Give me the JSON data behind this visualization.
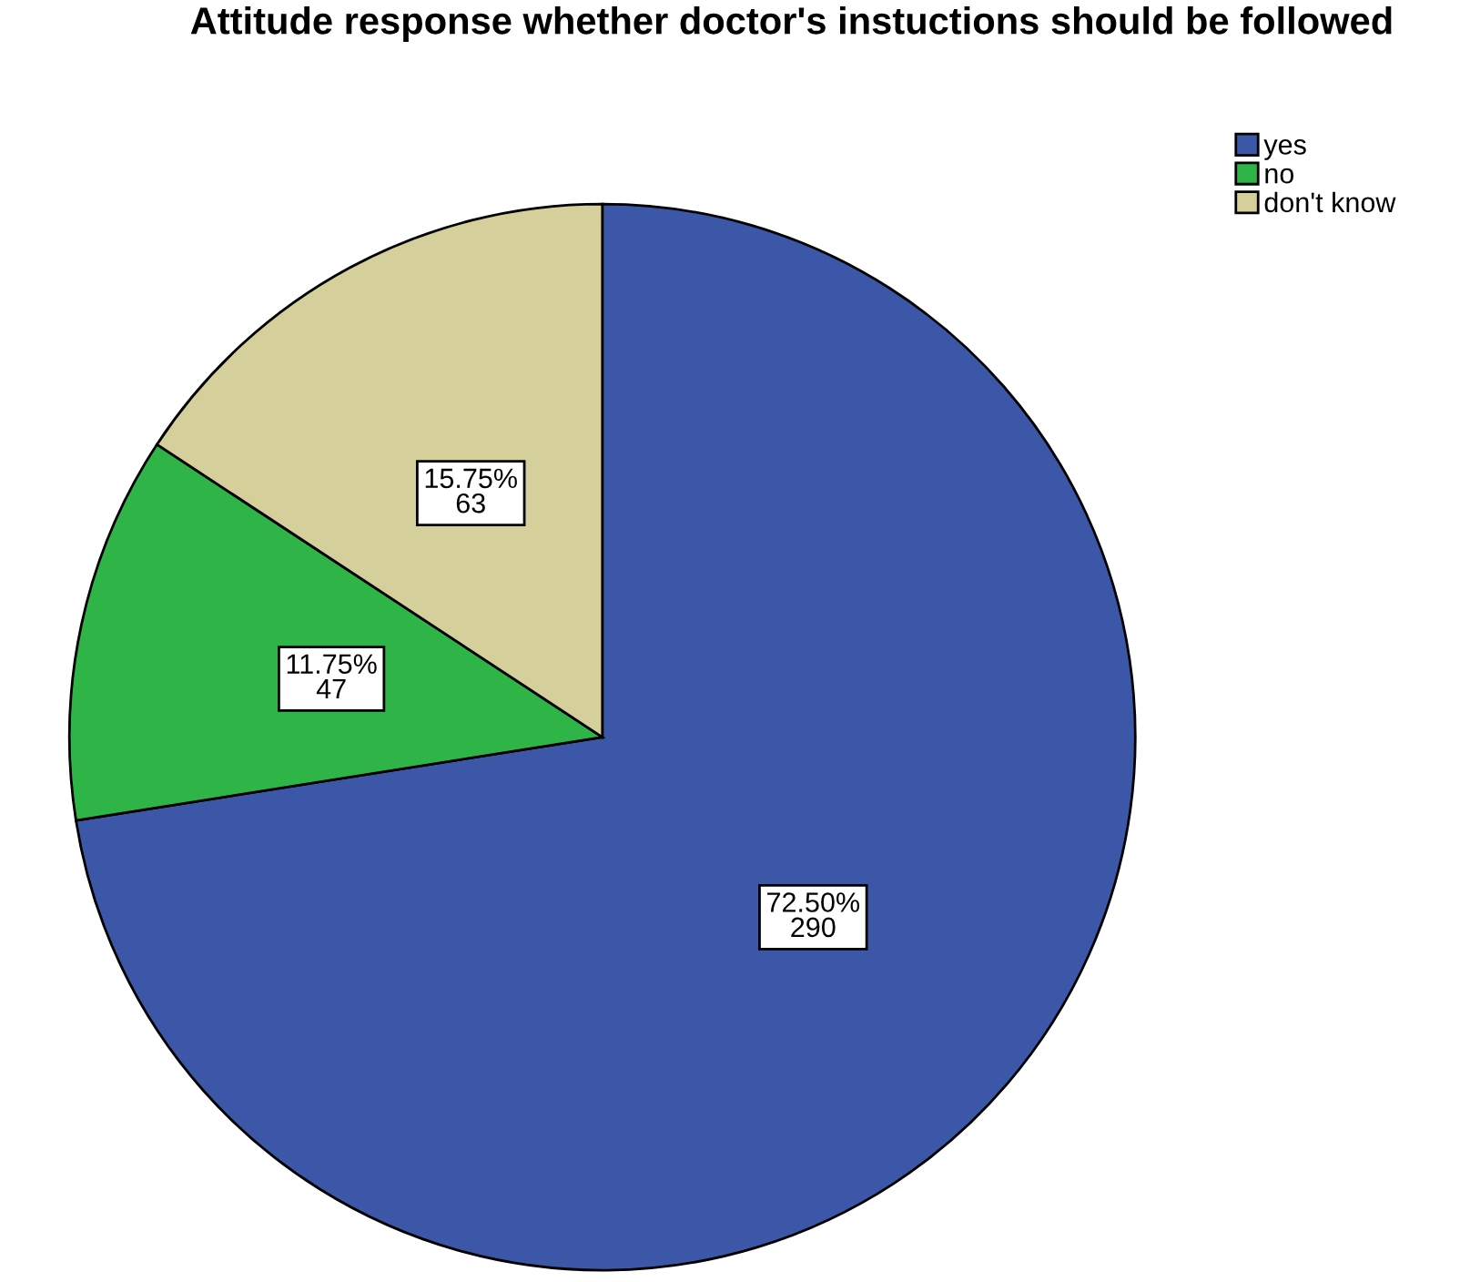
{
  "chart_data": {
    "type": "pie",
    "title": "Attitude response whether doctor's instuctions should be followed",
    "categories": [
      "yes",
      "no",
      "don't know"
    ],
    "values": [
      290,
      47,
      63
    ],
    "colors": [
      "#3d57a8",
      "#2fb447",
      "#d5cf9b"
    ],
    "value_labels": [
      "72.50%\n290",
      "11.75%\n47",
      "15.75%\n63"
    ],
    "legend": "top right"
  }
}
